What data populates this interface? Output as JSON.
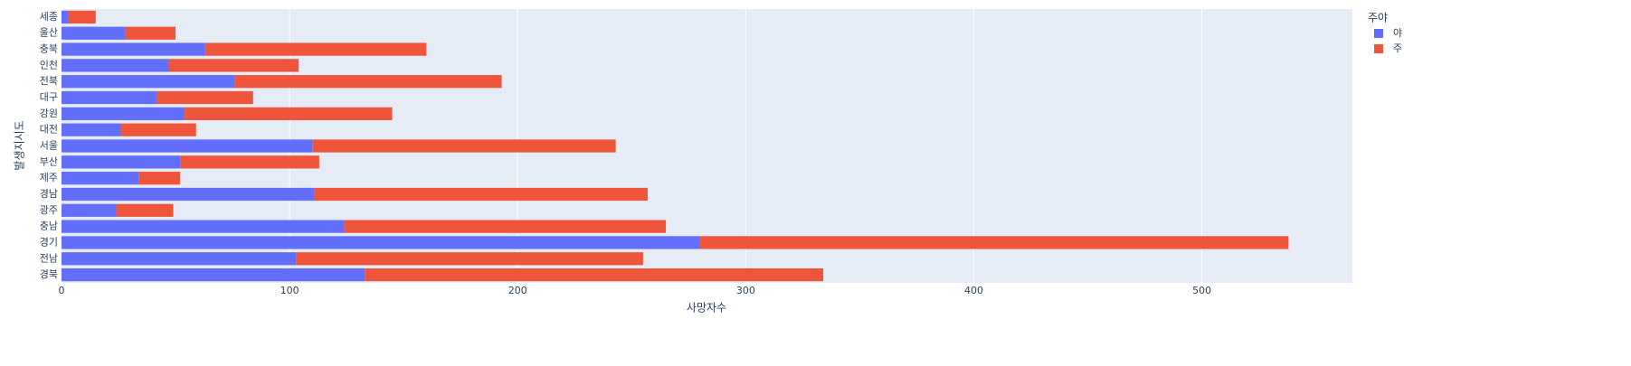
{
  "chart_data": {
    "type": "bar",
    "orientation": "horizontal",
    "stacked": true,
    "x_label": "사망자수",
    "y_label": "발생지시도",
    "legend_title": "주야",
    "categories": [
      "세종",
      "울산",
      "충북",
      "인천",
      "전북",
      "대구",
      "강원",
      "대전",
      "서울",
      "부산",
      "제주",
      "경남",
      "광주",
      "충남",
      "경기",
      "전남",
      "경북"
    ],
    "series": [
      {
        "name": "야",
        "color": "#636efa",
        "values": [
          3,
          28,
          63,
          47,
          76,
          42,
          54,
          26,
          110,
          52,
          34,
          111,
          24,
          124,
          280,
          103,
          133
        ]
      },
      {
        "name": "주",
        "color": "#EF553B",
        "values": [
          12,
          22,
          97,
          57,
          117,
          42,
          91,
          33,
          133,
          61,
          18,
          146,
          25,
          141,
          258,
          152,
          201
        ]
      }
    ],
    "xlim": [
      0,
      566
    ],
    "xticks": [
      0,
      100,
      200,
      300,
      400,
      500
    ],
    "grid": true,
    "legend": "right"
  }
}
